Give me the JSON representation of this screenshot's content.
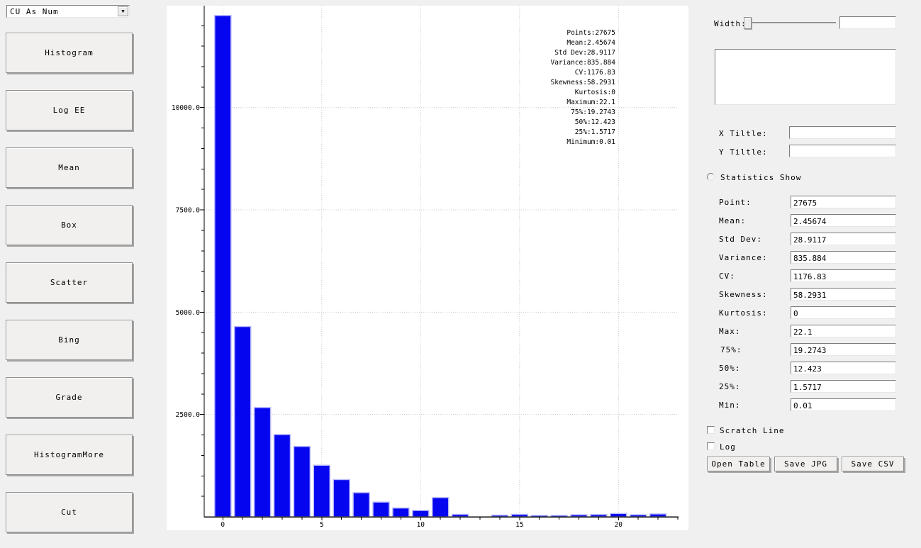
{
  "sidebar": {
    "dropdown": {
      "value": "CU As Num"
    },
    "buttons": [
      {
        "label": "Histogram"
      },
      {
        "label": "Log EE"
      },
      {
        "label": "Mean"
      },
      {
        "label": "Box"
      },
      {
        "label": "Scatter"
      },
      {
        "label": "Bing"
      },
      {
        "label": "Grade"
      },
      {
        "label": "HistogramMore"
      },
      {
        "label": "Cut"
      }
    ]
  },
  "chart_data": {
    "type": "bar",
    "title": "",
    "xlabel": "",
    "ylabel": "",
    "categories": [
      0,
      1,
      2,
      3,
      4,
      5,
      6,
      7,
      8,
      9,
      10,
      11,
      12,
      13,
      14,
      15,
      16,
      17,
      18,
      19,
      20,
      21,
      22
    ],
    "values": [
      12250,
      4650,
      2670,
      2010,
      1720,
      1260,
      910,
      590,
      360,
      215,
      155,
      470,
      60,
      0,
      40,
      60,
      35,
      35,
      50,
      55,
      80,
      50,
      70
    ],
    "bar_color": "#0505ef",
    "bar_edge_color": "#b9b9fb",
    "grid": "dotted",
    "grid_color": "#c9c9c9",
    "xlim": [
      -0.95,
      23.3
    ],
    "ylim": [
      0,
      12490
    ],
    "x_ticks_labeled": [
      0,
      5,
      10,
      15,
      20
    ],
    "x_minor_step": 1,
    "y_ticks_labeled": [
      2500,
      5000,
      7500,
      10000
    ],
    "y_tick_labels": [
      "2500.0",
      "5000.0",
      "7500.0",
      "10000.0"
    ],
    "y_minor_step": 500,
    "legend": "none",
    "stats_overlay": [
      "Points:27675",
      "Mean:2.45674",
      "Std Dev:28.9117",
      "Variance:835.884",
      "CV:1176.83",
      "Skewness:58.2931",
      "Kurtosis:0",
      "Maximum:22.1",
      "75%:19.2743",
      "50%:12.423",
      "25%:1.5717",
      "Minimum:0.01"
    ]
  },
  "right_panel": {
    "width_label": "Width:",
    "width_value": "",
    "x_title_label": "X Tiltle:",
    "x_title_value": "",
    "y_title_label": "Y Tiltle:",
    "y_title_value": "",
    "statistics_show_label": "Statistics Show",
    "stats": [
      {
        "label": "Point:",
        "value": "27675"
      },
      {
        "label": "Mean:",
        "value": "2.45674"
      },
      {
        "label": "Std Dev:",
        "value": "28.9117"
      },
      {
        "label": "Variance:",
        "value": "835.884"
      },
      {
        "label": "CV:",
        "value": "1176.83"
      },
      {
        "label": "Skewness:",
        "value": "58.2931"
      },
      {
        "label": "Kurtosis:",
        "value": "0"
      },
      {
        "label": "Max:",
        "value": "22.1"
      },
      {
        "label": "75%:",
        "value": "19.2743"
      },
      {
        "label": "50%:",
        "value": "12.423"
      },
      {
        "label": "25%:",
        "value": "1.5717"
      },
      {
        "label": "Min:",
        "value": "0.01"
      }
    ],
    "checkboxes": [
      {
        "label": "Scratch Line"
      },
      {
        "label": "Log"
      }
    ],
    "buttons": [
      {
        "label": "Open Table"
      },
      {
        "label": "Save JPG"
      },
      {
        "label": "Save CSV"
      }
    ]
  }
}
